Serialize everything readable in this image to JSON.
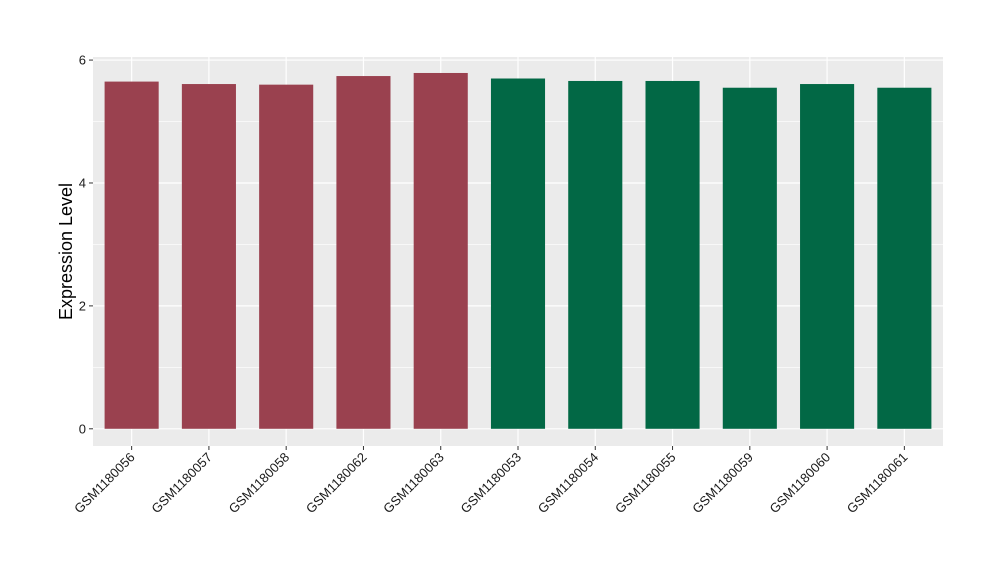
{
  "chart_data": {
    "type": "bar",
    "title": "",
    "xlabel": "",
    "ylabel": "Expression Level",
    "ylim": [
      -0.28,
      6.05
    ],
    "yticks": [
      0,
      2,
      4,
      6
    ],
    "grid": true,
    "legend": "none",
    "categories": [
      "GSM1180056",
      "GSM1180057",
      "GSM1180058",
      "GSM1180062",
      "GSM1180063",
      "GSM1180053",
      "GSM1180054",
      "GSM1180055",
      "GSM1180059",
      "GSM1180060",
      "GSM1180061"
    ],
    "values": [
      5.65,
      5.61,
      5.6,
      5.74,
      5.79,
      5.7,
      5.66,
      5.66,
      5.55,
      5.61,
      5.55
    ],
    "group_colors": [
      "#9a414f",
      "#9a414f",
      "#9a414f",
      "#9a414f",
      "#9a414f",
      "#026845",
      "#026845",
      "#026845",
      "#026845",
      "#026845",
      "#026845"
    ],
    "panel_color": "#ebebeb",
    "gridline_color": "#ffffff"
  }
}
